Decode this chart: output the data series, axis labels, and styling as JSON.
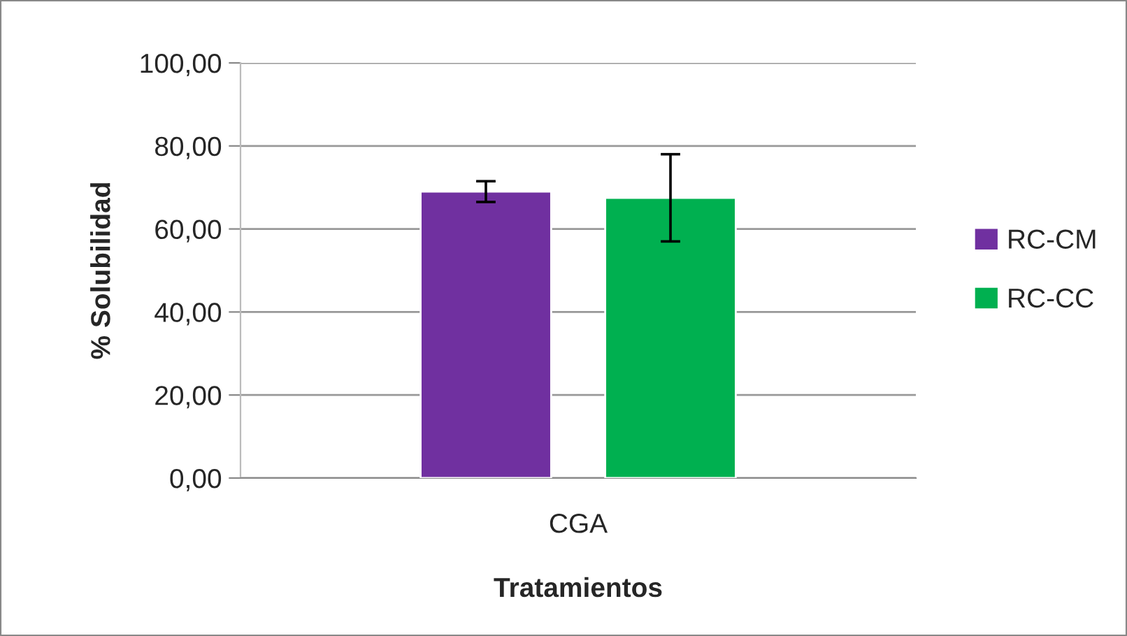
{
  "chart_data": {
    "type": "bar",
    "xlabel": "Tratamientos",
    "ylabel": "% Solubilidad",
    "categories": [
      "CGA"
    ],
    "series": [
      {
        "name": "RC-CM",
        "color": "#7030a0",
        "values": [
          69.0
        ],
        "errors": [
          2.5
        ]
      },
      {
        "name": "RC-CC",
        "color": "#00b050",
        "values": [
          67.5
        ],
        "errors": [
          10.5
        ]
      }
    ],
    "ylim": [
      0,
      100
    ],
    "yticks": [
      {
        "value": 0,
        "label": "0,00"
      },
      {
        "value": 20,
        "label": "20,00"
      },
      {
        "value": 40,
        "label": "40,00"
      },
      {
        "value": 60,
        "label": "60,00"
      },
      {
        "value": 80,
        "label": "80,00"
      },
      {
        "value": 100,
        "label": "100,00"
      }
    ],
    "grid": "y",
    "legend": "right"
  }
}
